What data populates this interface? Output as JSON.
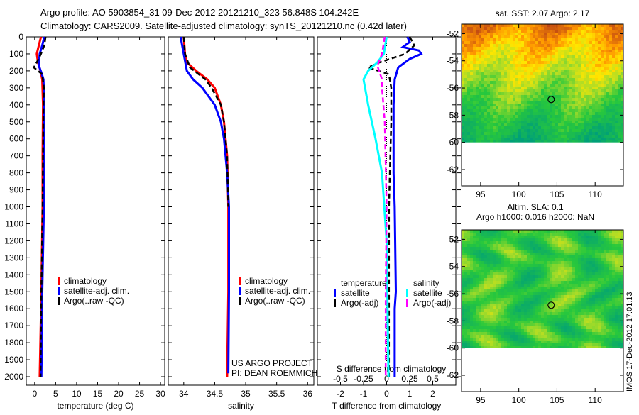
{
  "chart_data": {
    "type": "line",
    "title": [
      "Argo profile: AO 5903854_31 09-Dec-2012 20121210_323 56.848S 104.242E",
      "Climatology: CARS2009. Satellite-adjusted climatology: synTS_20121210.nc (0.42d later)"
    ],
    "depth_ticks": [
      0,
      100,
      200,
      300,
      400,
      500,
      600,
      700,
      800,
      900,
      1000,
      1100,
      1200,
      1300,
      1400,
      1500,
      1600,
      1700,
      1800,
      1900,
      2000
    ],
    "colors": {
      "climatology": "#ff0000",
      "satellite": "#0000ff",
      "argo": "#000000",
      "sal_sat": "#00ffff",
      "sal_argo": "#ff00ff"
    },
    "panels": [
      {
        "xlabel": "temperature (deg C)",
        "xlim": [
          -2,
          31
        ],
        "xticks": [
          "0",
          "5",
          "10",
          "15",
          "20",
          "25",
          "30"
        ],
        "xtickvals": [
          0,
          5,
          10,
          15,
          20,
          25,
          30
        ],
        "legend": [
          "climatology",
          "satellite-adj. clim.",
          "Argo(..raw -QC)"
        ],
        "series": [
          {
            "name": "climatology",
            "color": "#ff0000",
            "depth": [
              0,
              50,
              100,
              150,
              200,
              250,
              400,
              700,
              1000,
              1500,
              2000
            ],
            "values": [
              1.5,
              1.0,
              0.5,
              0.8,
              1.4,
              1.8,
              2.0,
              1.9,
              1.9,
              1.6,
              1.2
            ]
          },
          {
            "name": "satellite-adj. clim.",
            "color": "#0000ff",
            "depth": [
              0,
              50,
              100,
              170,
              210,
              250,
              400,
              700,
              1000,
              1500,
              2000
            ],
            "values": [
              2.3,
              1.8,
              1.2,
              1.0,
              1.6,
              2.1,
              2.3,
              2.2,
              2.2,
              1.8,
              1.6
            ]
          },
          {
            "name": "Argo(..raw -QC)",
            "color": "#000000",
            "dash": true,
            "depth": [
              0,
              50,
              100,
              150,
              180,
              220,
              300,
              400,
              700,
              1000,
              1500,
              2000
            ],
            "values": [
              2.6,
              2.3,
              1.5,
              0.5,
              -0.2,
              1.8,
              2.2,
              2.1,
              2.0,
              1.9,
              1.6,
              1.4
            ]
          }
        ]
      },
      {
        "xlabel": "salinity",
        "xlim": [
          33.75,
          36.1
        ],
        "xticks": [
          "34",
          "34.5",
          "35",
          "35.5",
          "36"
        ],
        "xtickvals": [
          34,
          34.5,
          35,
          35.5,
          36
        ],
        "legend": [
          "climatology",
          "satellite-adj. clim.",
          "Argo(..raw -QC)"
        ],
        "credits": [
          "US ARGO PROJECT",
          "PI: DEAN ROEMMICH"
        ],
        "series": [
          {
            "name": "climatology",
            "color": "#ff0000",
            "depth": [
              0,
              100,
              150,
              200,
              250,
              300,
              400,
              500,
              700,
              1000,
              1500,
              2000
            ],
            "values": [
              34.0,
              34.02,
              34.05,
              34.2,
              34.38,
              34.5,
              34.6,
              34.65,
              34.7,
              34.72,
              34.72,
              34.7
            ]
          },
          {
            "name": "satellite-adj. clim.",
            "color": "#0000ff",
            "depth": [
              0,
              100,
              200,
              250,
              300,
              400,
              500,
              600,
              800,
              1000,
              1500,
              1980
            ],
            "values": [
              33.95,
              34.0,
              34.05,
              34.15,
              34.3,
              34.5,
              34.6,
              34.65,
              34.7,
              34.73,
              34.73,
              34.72
            ]
          },
          {
            "name": "Argo(..raw -QC)",
            "color": "#000000",
            "dash": true,
            "depth": [
              0,
              100,
              180,
              250,
              300,
              400,
              500,
              700,
              1000
            ],
            "values": [
              34.0,
              34.02,
              34.1,
              34.35,
              34.45,
              34.6,
              34.65,
              34.7,
              34.72
            ]
          }
        ]
      },
      {
        "xlabel": "T difference from climatology",
        "xlim": [
          -3,
          3
        ],
        "xticks": [
          "-2",
          "-1",
          "0",
          "1",
          "2"
        ],
        "xtickvals": [
          -2,
          -1,
          0,
          1,
          2
        ],
        "xlabel2": "S difference from climatology",
        "xticks2": [
          "-0.5",
          "-0.25",
          "0",
          "0.25",
          "0.5"
        ],
        "xtickvals2": [
          -0.5,
          -0.25,
          0,
          0.25,
          0.5
        ],
        "legend_t": [
          "temperature",
          "satellite",
          "Argo(-adj)"
        ],
        "legend_s": [
          "salinity",
          "satellite",
          "Argo(-adj)"
        ],
        "series": [
          {
            "name": "T satellite",
            "axis": "T",
            "color": "#0000ff",
            "depth": [
              0,
              30,
              60,
              80,
              100,
              130,
              180,
              250,
              400,
              800,
              1000,
              1500,
              1600,
              2000
            ],
            "values": [
              0.9,
              1.0,
              0.7,
              1.4,
              1.5,
              1.0,
              0.5,
              0.35,
              0.3,
              0.3,
              0.35,
              0.4,
              0.35,
              0.35
            ]
          },
          {
            "name": "T Argo(-adj)",
            "axis": "T",
            "color": "#000000",
            "dash": true,
            "depth": [
              0,
              50,
              100,
              150,
              180,
              220,
              300,
              500,
              1000,
              1500,
              2000
            ],
            "values": [
              1.0,
              1.2,
              0.8,
              -0.3,
              -0.8,
              0.1,
              0.2,
              0.2,
              0.1,
              0.1,
              0.1
            ]
          },
          {
            "name": "S satellite",
            "axis": "S",
            "color": "#00ffff",
            "depth": [
              0,
              100,
              150,
              200,
              250,
              400,
              600,
              800,
              1200,
              1600,
              2000
            ],
            "values": [
              0.0,
              -0.03,
              -0.1,
              -0.2,
              -0.25,
              -0.2,
              -0.12,
              -0.05,
              0.0,
              0.01,
              0.02
            ]
          },
          {
            "name": "S Argo(-adj)",
            "axis": "S",
            "color": "#ff00ff",
            "dash": true,
            "depth": [
              0,
              100,
              170,
              250,
              300,
              500,
              1000,
              1500,
              2000
            ],
            "values": [
              -0.02,
              -0.05,
              -0.1,
              -0.05,
              -0.05,
              -0.02,
              0,
              -0.01,
              -0.01
            ]
          }
        ]
      }
    ],
    "maps": [
      {
        "title": "sat. SST: 2.07 Argo: 2.17",
        "kind": "sst",
        "lon": [
          92.5,
          113.7
        ],
        "lat": [
          -63.2,
          -51.3
        ],
        "data_lat_min": -60,
        "xticks": [
          95,
          100,
          105,
          110
        ],
        "yticks": [
          -52,
          -54,
          -56,
          -58,
          -60,
          -62
        ],
        "argo_lon": 104.242,
        "argo_lat": -56.848
      },
      {
        "title": [
          "Altim. SLA: 0.1",
          "Argo h1000: 0.016 h2000: NaN"
        ],
        "kind": "sla",
        "lon": [
          92.5,
          113.7
        ],
        "lat": [
          -63.2,
          -51.3
        ],
        "data_lat_min": -60,
        "xticks": [
          95,
          100,
          105,
          110
        ],
        "yticks": [
          -52,
          -54,
          -56,
          -58,
          -60,
          -62
        ],
        "argo_lon": 104.242,
        "argo_lat": -56.848
      }
    ],
    "stamp": "IMOS 17-Dec-2012 17:01:13"
  }
}
